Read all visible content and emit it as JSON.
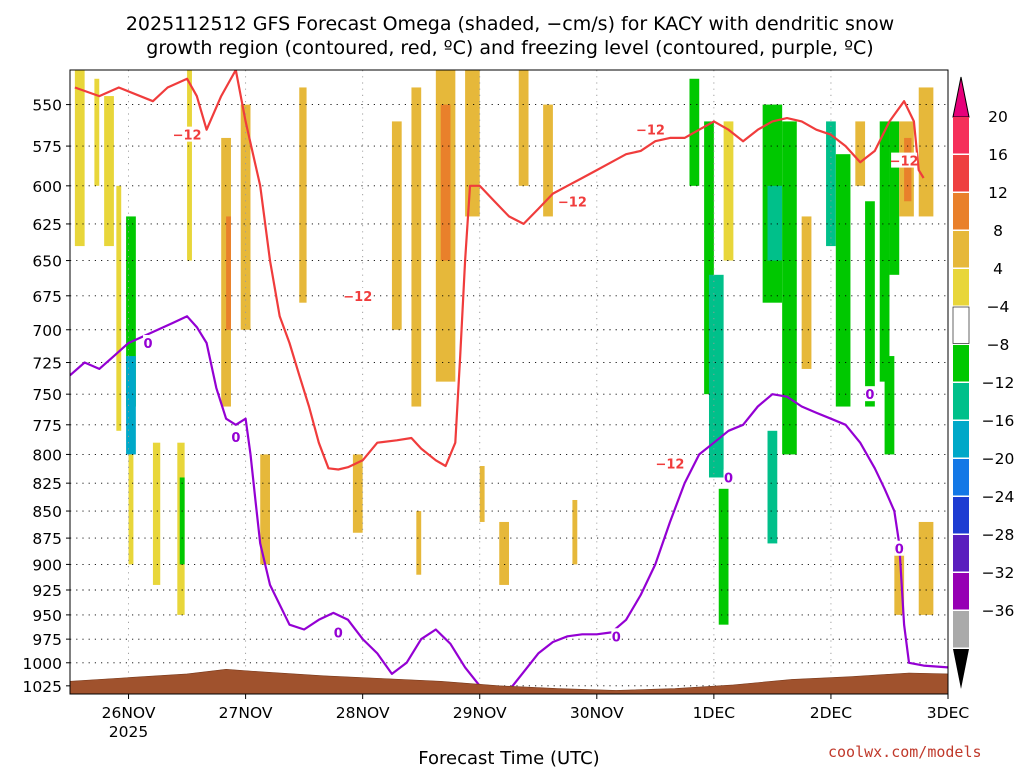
{
  "title_line1": "2025112512 GFS Forecast Omega (shaded, −cm/s) for KACY with dendritic snow",
  "title_line2": "growth region (contoured, red, ºC) and freezing level (contoured, purple, ºC)",
  "credit": "coolwx.com/models",
  "colors": {
    "dgz_contour": "#f03c3c",
    "freezing_contour": "#9400d3",
    "terrain": "#a0522d"
  },
  "chart_data": {
    "type": "heatmap",
    "title": "2025112512 GFS Forecast Omega (shaded, −cm/s) for KACY with dendritic snow growth region (contoured, red, ºC) and freezing level (contoured, purple, ºC)",
    "xlabel": "Forecast Time (UTC)",
    "ylabel": "",
    "x_ticks": [
      {
        "hour": 0,
        "label": "26NOV",
        "sublabel": "2025"
      },
      {
        "hour": 24,
        "label": "27NOV",
        "sublabel": ""
      },
      {
        "hour": 48,
        "label": "28NOV",
        "sublabel": ""
      },
      {
        "hour": 72,
        "label": "29NOV",
        "sublabel": ""
      },
      {
        "hour": 96,
        "label": "30NOV",
        "sublabel": ""
      },
      {
        "hour": 120,
        "label": "1DEC",
        "sublabel": ""
      },
      {
        "hour": 144,
        "label": "2DEC",
        "sublabel": ""
      },
      {
        "hour": 168,
        "label": "3DEC",
        "sublabel": ""
      }
    ],
    "xlim_hours": [
      -12,
      168
    ],
    "y_ticks": [
      550,
      575,
      600,
      625,
      650,
      675,
      700,
      725,
      750,
      775,
      800,
      825,
      850,
      875,
      900,
      925,
      950,
      975,
      1000,
      1025
    ],
    "ylim_hPa": [
      1034,
      530
    ],
    "y_scale": "log-pressure",
    "grid": true,
    "colorbar": {
      "labels": [
        "20",
        "16",
        "12",
        "8",
        "4",
        "−4",
        "−8",
        "−12",
        "−16",
        "−20",
        "−24",
        "−28",
        "−32",
        "−36"
      ],
      "colors": [
        "#f52f5a",
        "#ee4040",
        "#e9802b",
        "#e6b83a",
        "#e8d63a",
        "#ffffff",
        "#00c800",
        "#00c08a",
        "#00a8c8",
        "#1478e6",
        "#1e3cd2",
        "#5a1ebe",
        "#9600b4",
        "#aaaaaa"
      ],
      "over_color": "#e6007a",
      "under_color": "#000000"
    },
    "omega_cells": [
      {
        "h0": -11,
        "h1": -9,
        "p0": 530,
        "p1": 640,
        "c": 4,
        "v": -6
      },
      {
        "h0": -7,
        "h1": -6,
        "p0": 535,
        "p1": 600,
        "c": 4,
        "v": -6
      },
      {
        "h0": -5,
        "h1": -3,
        "p0": 545,
        "p1": 640,
        "c": 4,
        "v": -6
      },
      {
        "h0": -2.5,
        "h1": -1.5,
        "p0": 600,
        "p1": 780,
        "c": 4,
        "v": -10
      },
      {
        "h0": -0.5,
        "h1": 1.5,
        "p0": 620,
        "p1": 760,
        "c": 6,
        "v": -10
      },
      {
        "h0": -0.5,
        "h1": 1.5,
        "p0": 720,
        "p1": 800,
        "c": 8,
        "v": -14
      },
      {
        "h0": 0,
        "h1": 1,
        "p0": 800,
        "p1": 900,
        "c": 4,
        "v": -6
      },
      {
        "h0": 5,
        "h1": 6.5,
        "p0": 790,
        "p1": 920,
        "c": 4,
        "v": -6
      },
      {
        "h0": 10,
        "h1": 11.5,
        "p0": 790,
        "p1": 950,
        "c": 4,
        "v": -8
      },
      {
        "h0": 10.5,
        "h1": 11.5,
        "p0": 820,
        "p1": 900,
        "c": 6,
        "v": -10
      },
      {
        "h0": 12,
        "h1": 13,
        "p0": 530,
        "p1": 650,
        "c": 4,
        "v": -6
      },
      {
        "h0": 19,
        "h1": 21,
        "p0": 570,
        "p1": 760,
        "c": 3,
        "v": 5
      },
      {
        "h0": 20,
        "h1": 21,
        "p0": 620,
        "p1": 700,
        "c": 2,
        "v": 9
      },
      {
        "h0": 23,
        "h1": 25,
        "p0": 550,
        "p1": 700,
        "c": 3,
        "v": 5
      },
      {
        "h0": 27,
        "h1": 29,
        "p0": 800,
        "p1": 900,
        "c": 3,
        "v": 5
      },
      {
        "h0": 35,
        "h1": 36.5,
        "p0": 540,
        "p1": 680,
        "c": 3,
        "v": 5
      },
      {
        "h0": 46,
        "h1": 48,
        "p0": 800,
        "p1": 870,
        "c": 3,
        "v": 5
      },
      {
        "h0": 54,
        "h1": 56,
        "p0": 560,
        "p1": 700,
        "c": 3,
        "v": 5
      },
      {
        "h0": 58,
        "h1": 60,
        "p0": 540,
        "p1": 760,
        "c": 3,
        "v": 5
      },
      {
        "h0": 59,
        "h1": 60,
        "p0": 850,
        "p1": 910,
        "c": 3,
        "v": 5
      },
      {
        "h0": 63,
        "h1": 67,
        "p0": 530,
        "p1": 740,
        "c": 3,
        "v": 6
      },
      {
        "h0": 64,
        "h1": 66,
        "p0": 550,
        "p1": 650,
        "c": 2,
        "v": 9
      },
      {
        "h0": 69,
        "h1": 72,
        "p0": 530,
        "p1": 620,
        "c": 3,
        "v": 6
      },
      {
        "h0": 72,
        "h1": 73,
        "p0": 810,
        "p1": 860,
        "c": 3,
        "v": 5
      },
      {
        "h0": 76,
        "h1": 78,
        "p0": 860,
        "p1": 920,
        "c": 3,
        "v": 5
      },
      {
        "h0": 80,
        "h1": 82,
        "p0": 530,
        "p1": 600,
        "c": 3,
        "v": 5
      },
      {
        "h0": 85,
        "h1": 87,
        "p0": 550,
        "p1": 620,
        "c": 3,
        "v": 5
      },
      {
        "h0": 91,
        "h1": 92,
        "p0": 840,
        "p1": 900,
        "c": 3,
        "v": 5
      },
      {
        "h0": 115,
        "h1": 117,
        "p0": 535,
        "p1": 600,
        "c": 6,
        "v": -8
      },
      {
        "h0": 118,
        "h1": 120,
        "p0": 560,
        "p1": 750,
        "c": 6,
        "v": -8
      },
      {
        "h0": 119,
        "h1": 122,
        "p0": 660,
        "p1": 820,
        "c": 7,
        "v": -12
      },
      {
        "h0": 121,
        "h1": 123,
        "p0": 830,
        "p1": 960,
        "c": 6,
        "v": -8
      },
      {
        "h0": 122,
        "h1": 124,
        "p0": 560,
        "p1": 650,
        "c": 4,
        "v": -6
      },
      {
        "h0": 130,
        "h1": 134,
        "p0": 550,
        "p1": 680,
        "c": 6,
        "v": -8
      },
      {
        "h0": 131,
        "h1": 134,
        "p0": 600,
        "p1": 650,
        "c": 7,
        "v": -12
      },
      {
        "h0": 131,
        "h1": 133,
        "p0": 780,
        "p1": 880,
        "c": 7,
        "v": -12
      },
      {
        "h0": 134,
        "h1": 137,
        "p0": 560,
        "p1": 800,
        "c": 6,
        "v": -8
      },
      {
        "h0": 138,
        "h1": 140,
        "p0": 620,
        "p1": 730,
        "c": 3,
        "v": 5
      },
      {
        "h0": 143,
        "h1": 145,
        "p0": 560,
        "p1": 640,
        "c": 7,
        "v": -12
      },
      {
        "h0": 145,
        "h1": 148,
        "p0": 580,
        "p1": 760,
        "c": 6,
        "v": -8
      },
      {
        "h0": 149,
        "h1": 151,
        "p0": 560,
        "p1": 600,
        "c": 3,
        "v": 5
      },
      {
        "h0": 151,
        "h1": 153,
        "p0": 610,
        "p1": 760,
        "c": 6,
        "v": -8
      },
      {
        "h0": 154,
        "h1": 156,
        "p0": 560,
        "p1": 740,
        "c": 6,
        "v": -8
      },
      {
        "h0": 155,
        "h1": 157,
        "p0": 720,
        "p1": 800,
        "c": 6,
        "v": -9
      },
      {
        "h0": 156,
        "h1": 158,
        "p0": 560,
        "p1": 660,
        "c": 6,
        "v": -8
      },
      {
        "h0": 157,
        "h1": 159,
        "p0": 880,
        "p1": 950,
        "c": 3,
        "v": 5
      },
      {
        "h0": 158,
        "h1": 161,
        "p0": 560,
        "p1": 620,
        "c": 3,
        "v": 6
      },
      {
        "h0": 159,
        "h1": 160.5,
        "p0": 570,
        "p1": 610,
        "c": 2,
        "v": 9
      },
      {
        "h0": 162,
        "h1": 165,
        "p0": 540,
        "p1": 620,
        "c": 3,
        "v": 5
      },
      {
        "h0": 162,
        "h1": 165,
        "p0": 860,
        "p1": 950,
        "c": 3,
        "v": 6
      }
    ],
    "dgz_contour_neg12": {
      "value": -12,
      "points": [
        [
          -11,
          540
        ],
        [
          -6,
          545
        ],
        [
          -2,
          540
        ],
        [
          5,
          548
        ],
        [
          8,
          540
        ],
        [
          12,
          535
        ],
        [
          14,
          545
        ],
        [
          16,
          565
        ],
        [
          19,
          545
        ],
        [
          22,
          530
        ],
        [
          24,
          560
        ],
        [
          27,
          600
        ],
        [
          29,
          650
        ],
        [
          31,
          690
        ],
        [
          33,
          710
        ],
        [
          35,
          735
        ],
        [
          37,
          760
        ],
        [
          39,
          790
        ],
        [
          41,
          812
        ],
        [
          43,
          813
        ],
        [
          45,
          811
        ],
        [
          48,
          805
        ],
        [
          51,
          790
        ],
        [
          55,
          788
        ],
        [
          58,
          786
        ],
        [
          60,
          795
        ],
        [
          63,
          805
        ],
        [
          65,
          810
        ],
        [
          67,
          790
        ],
        [
          68,
          720
        ],
        [
          69,
          650
        ],
        [
          70,
          600
        ],
        [
          72,
          600
        ],
        [
          75,
          610
        ],
        [
          78,
          620
        ],
        [
          81,
          625
        ],
        [
          84,
          615
        ],
        [
          87,
          605
        ],
        [
          90,
          600
        ],
        [
          93,
          595
        ],
        [
          96,
          590
        ],
        [
          99,
          585
        ],
        [
          102,
          580
        ],
        [
          105,
          578
        ],
        [
          108,
          572
        ],
        [
          111,
          570
        ],
        [
          114,
          570
        ],
        [
          117,
          565
        ],
        [
          120,
          560
        ],
        [
          123,
          565
        ],
        [
          126,
          572
        ],
        [
          129,
          565
        ],
        [
          132,
          560
        ],
        [
          135,
          558
        ],
        [
          138,
          560
        ],
        [
          141,
          565
        ],
        [
          144,
          568
        ],
        [
          147,
          575
        ],
        [
          150,
          585
        ],
        [
          153,
          578
        ],
        [
          156,
          560
        ],
        [
          159,
          548
        ],
        [
          161,
          560
        ],
        [
          162,
          590
        ],
        [
          163,
          595
        ]
      ]
    },
    "freezing_contour_0c": {
      "value": 0,
      "points": [
        [
          -12,
          735
        ],
        [
          -9,
          725
        ],
        [
          -6,
          730
        ],
        [
          -3,
          720
        ],
        [
          0,
          710
        ],
        [
          3,
          705
        ],
        [
          6,
          700
        ],
        [
          9,
          695
        ],
        [
          12,
          690
        ],
        [
          14,
          698
        ],
        [
          16,
          710
        ],
        [
          18,
          745
        ],
        [
          20,
          770
        ],
        [
          22,
          775
        ],
        [
          24,
          770
        ],
        [
          25,
          800
        ],
        [
          26,
          840
        ],
        [
          27,
          880
        ],
        [
          29,
          920
        ],
        [
          33,
          960
        ],
        [
          36,
          965
        ],
        [
          39,
          955
        ],
        [
          42,
          948
        ],
        [
          45,
          955
        ],
        [
          48,
          975
        ],
        [
          51,
          990
        ],
        [
          54,
          1012
        ],
        [
          57,
          1000
        ],
        [
          60,
          975
        ],
        [
          63,
          965
        ],
        [
          66,
          980
        ],
        [
          69,
          1005
        ],
        [
          72,
          1025
        ],
        [
          75,
          1034
        ],
        [
          78,
          1030
        ],
        [
          81,
          1010
        ],
        [
          84,
          990
        ],
        [
          87,
          978
        ],
        [
          90,
          972
        ],
        [
          93,
          970
        ],
        [
          96,
          970
        ],
        [
          99,
          968
        ],
        [
          102,
          955
        ],
        [
          105,
          930
        ],
        [
          108,
          900
        ],
        [
          111,
          860
        ],
        [
          114,
          825
        ],
        [
          117,
          800
        ],
        [
          120,
          790
        ],
        [
          123,
          780
        ],
        [
          126,
          775
        ],
        [
          129,
          760
        ],
        [
          132,
          750
        ],
        [
          135,
          752
        ],
        [
          138,
          760
        ],
        [
          141,
          765
        ],
        [
          144,
          770
        ],
        [
          147,
          775
        ],
        [
          150,
          790
        ],
        [
          153,
          812
        ],
        [
          155,
          830
        ],
        [
          157,
          850
        ],
        [
          158,
          880
        ],
        [
          158.5,
          920
        ],
        [
          159,
          960
        ],
        [
          160,
          1000
        ],
        [
          163,
          1003
        ],
        [
          168,
          1005
        ]
      ]
    },
    "contour_labels": [
      {
        "text": "−12",
        "hour": 12,
        "hPa": 568,
        "kind": "dgz"
      },
      {
        "text": "−12",
        "hour": 47,
        "hPa": 675,
        "kind": "dgz"
      },
      {
        "text": "−12",
        "hour": 91,
        "hPa": 610,
        "kind": "dgz"
      },
      {
        "text": "−12",
        "hour": 107,
        "hPa": 565,
        "kind": "dgz"
      },
      {
        "text": "−12",
        "hour": 111,
        "hPa": 808,
        "kind": "dgz"
      },
      {
        "text": "−12",
        "hour": 159,
        "hPa": 584,
        "kind": "dgz"
      },
      {
        "text": "0",
        "hour": 4,
        "hPa": 710,
        "kind": "frz"
      },
      {
        "text": "0",
        "hour": 22,
        "hPa": 785,
        "kind": "frz"
      },
      {
        "text": "0",
        "hour": 43,
        "hPa": 968,
        "kind": "frz"
      },
      {
        "text": "0",
        "hour": 100,
        "hPa": 972,
        "kind": "frz"
      },
      {
        "text": "0",
        "hour": 123,
        "hPa": 820,
        "kind": "frz"
      },
      {
        "text": "0",
        "hour": 152,
        "hPa": 750,
        "kind": "frz"
      },
      {
        "text": "0",
        "hour": 158,
        "hPa": 885,
        "kind": "frz"
      }
    ],
    "terrain_surface_hPa": [
      [
        -12,
        1020
      ],
      [
        0,
        1016
      ],
      [
        12,
        1012
      ],
      [
        20,
        1007
      ],
      [
        28,
        1010
      ],
      [
        40,
        1014
      ],
      [
        52,
        1017
      ],
      [
        64,
        1020
      ],
      [
        76,
        1025
      ],
      [
        88,
        1028
      ],
      [
        100,
        1030
      ],
      [
        112,
        1028
      ],
      [
        124,
        1024
      ],
      [
        136,
        1018
      ],
      [
        148,
        1015
      ],
      [
        160,
        1011
      ],
      [
        168,
        1012
      ]
    ]
  }
}
